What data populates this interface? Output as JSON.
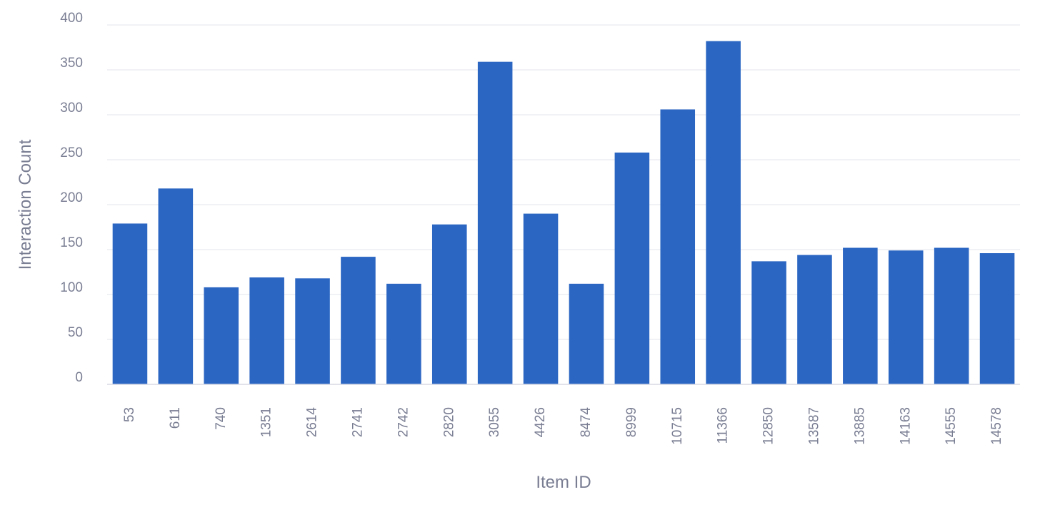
{
  "chart_data": {
    "type": "bar",
    "title": "",
    "xlabel": "Item ID",
    "ylabel": "Interaction Count",
    "categories": [
      "53",
      "611",
      "740",
      "1351",
      "2614",
      "2741",
      "2742",
      "2820",
      "3055",
      "4426",
      "8474",
      "8999",
      "10715",
      "11366",
      "12850",
      "13587",
      "13885",
      "14163",
      "14555",
      "14578"
    ],
    "values": [
      179,
      218,
      108,
      119,
      118,
      142,
      112,
      178,
      359,
      190,
      112,
      258,
      306,
      382,
      137,
      144,
      152,
      149,
      152,
      146
    ],
    "ylim": [
      0,
      400
    ],
    "yticks": [
      0,
      50,
      100,
      150,
      200,
      250,
      300,
      350,
      400
    ],
    "grid": true,
    "legend": "none",
    "colors": {
      "bar": "#2b66c3",
      "grid": "#e3e5ee",
      "text": "#7a7e93"
    }
  }
}
